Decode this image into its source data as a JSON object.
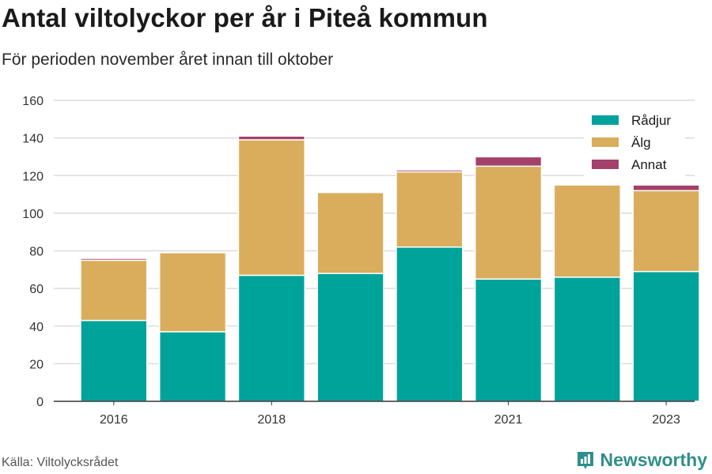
{
  "header": {
    "title": "Antal viltolyckor per år i Piteå kommun",
    "subtitle": "För perioden november året innan till oktober"
  },
  "footer": {
    "source": "Källa: Viltolycksrådet",
    "brand": "Newsworthy"
  },
  "colors": {
    "radjur": "#00a39a",
    "alg": "#d9ad5b",
    "annat": "#a3416a",
    "brand": "#2f8f8a"
  },
  "chart_data": {
    "type": "bar",
    "stacked": true,
    "title": "Antal viltolyckor per år i Piteå kommun",
    "subtitle": "För perioden november året innan till oktober",
    "categories": [
      "2016",
      "2017",
      "2018",
      "2019",
      "2020",
      "2021",
      "2022",
      "2023"
    ],
    "x_tick_labels": [
      "2016",
      "",
      "2018",
      "",
      "",
      "2021",
      "",
      "2023"
    ],
    "series": [
      {
        "name": "Rådjur",
        "color": "#00a39a",
        "values": [
          43,
          37,
          67,
          68,
          82,
          65,
          66,
          69
        ]
      },
      {
        "name": "Älg",
        "color": "#d9ad5b",
        "values": [
          32,
          42,
          72,
          43,
          40,
          60,
          49,
          43
        ]
      },
      {
        "name": "Annat",
        "color": "#a3416a",
        "values": [
          1,
          0,
          2,
          0,
          1,
          5,
          0,
          3
        ]
      }
    ],
    "ylim": [
      0,
      160
    ],
    "yticks": [
      0,
      20,
      40,
      60,
      80,
      100,
      120,
      140,
      160
    ],
    "grid": true,
    "legend": "top-right",
    "xlabel": "",
    "ylabel": ""
  }
}
